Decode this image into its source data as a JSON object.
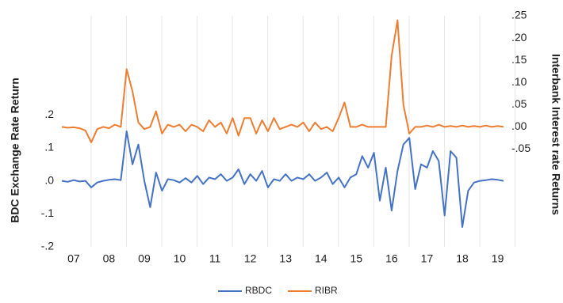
{
  "chart_data": {
    "type": "line",
    "y_label": "BDC Exchange Rate  Return",
    "y2_label": "Interbank Interest rate Returns",
    "categories": [
      null,
      null,
      "07",
      null,
      null,
      null,
      null,
      null,
      "08",
      null,
      null,
      null,
      null,
      null,
      "09",
      null,
      null,
      null,
      null,
      null,
      "10",
      null,
      null,
      null,
      null,
      null,
      "11",
      null,
      null,
      null,
      null,
      null,
      "12",
      null,
      null,
      null,
      null,
      null,
      "13",
      null,
      null,
      null,
      null,
      null,
      "14",
      null,
      null,
      null,
      null,
      null,
      "15",
      null,
      null,
      null,
      null,
      null,
      "16",
      null,
      null,
      null,
      null,
      null,
      "17",
      null,
      null,
      null,
      null,
      null,
      "18",
      null,
      null,
      null,
      null,
      null,
      "19",
      null
    ],
    "series": [
      {
        "name": "RBDC",
        "color": "#4472c4",
        "axis": "y",
        "values": [
          0,
          -0.003,
          0.002,
          -0.002,
          0,
          -0.02,
          -0.005,
          0,
          0.003,
          0.005,
          0.002,
          0.15,
          0.05,
          0.11,
          0,
          -0.08,
          0.025,
          -0.03,
          0.005,
          0.002,
          -0.005,
          0.008,
          -0.005,
          0.015,
          -0.01,
          0.01,
          0.005,
          0.02,
          0,
          0.01,
          0.035,
          -0.01,
          0.02,
          0,
          0.03,
          -0.02,
          0.005,
          0,
          0.02,
          0,
          0.01,
          0.005,
          0.02,
          0,
          0.01,
          0.025,
          -0.01,
          0.01,
          -0.02,
          0.01,
          0.02,
          0.075,
          0.04,
          0.085,
          -0.06,
          0.04,
          -0.09,
          0.03,
          0.11,
          0.13,
          -0.025,
          0.05,
          0.04,
          0.09,
          0.06,
          -0.105,
          0.09,
          0.07,
          -0.14,
          -0.03,
          -0.005,
          0,
          0.002,
          0.005,
          0.003,
          0
        ]
      },
      {
        "name": "RIBR",
        "color": "#ed7d31",
        "axis": "y2",
        "values": [
          0,
          -0.002,
          -0.001,
          -0.003,
          -0.008,
          -0.035,
          -0.005,
          0,
          -0.003,
          0.005,
          0,
          0.13,
          0.08,
          0.01,
          -0.005,
          0,
          0.035,
          -0.015,
          0.005,
          0,
          0.005,
          -0.01,
          0.005,
          0,
          -0.01,
          0.015,
          0,
          0.01,
          -0.015,
          0.02,
          -0.02,
          0.02,
          0.02,
          -0.015,
          0.015,
          -0.01,
          0.02,
          -0.005,
          0,
          0.005,
          0,
          0.01,
          -0.01,
          0.01,
          -0.005,
          0,
          -0.01,
          0.02,
          0.055,
          0,
          0,
          0.005,
          0,
          0,
          0,
          0,
          0.16,
          0.24,
          0.05,
          -0.015,
          0,
          0,
          0.003,
          0,
          0.005,
          0,
          0.002,
          0,
          0.003,
          0,
          0.002,
          0,
          0.003,
          0,
          0.002,
          0
        ]
      }
    ],
    "ylim": [
      -0.2,
      0.5
    ],
    "yticks": [
      {
        "value": -0.2,
        "label": "-.2"
      },
      {
        "value": -0.1,
        "label": "-.1"
      },
      {
        "value": 0,
        "label": ".0"
      },
      {
        "value": 0.1,
        "label": ".1"
      },
      {
        "value": 0.2,
        "label": ".2"
      }
    ],
    "y2lim": [
      -0.27,
      0.25
    ],
    "y2ticks": [
      {
        "value": -0.05,
        "label": "-.05"
      },
      {
        "value": 0,
        "label": ".00"
      },
      {
        "value": 0.05,
        "label": ".05"
      },
      {
        "value": 0.1,
        "label": ".10"
      },
      {
        "value": 0.15,
        "label": ".15"
      },
      {
        "value": 0.2,
        "label": ".20"
      },
      {
        "value": 0.25,
        "label": ".25"
      }
    ],
    "legend": "bottom"
  }
}
